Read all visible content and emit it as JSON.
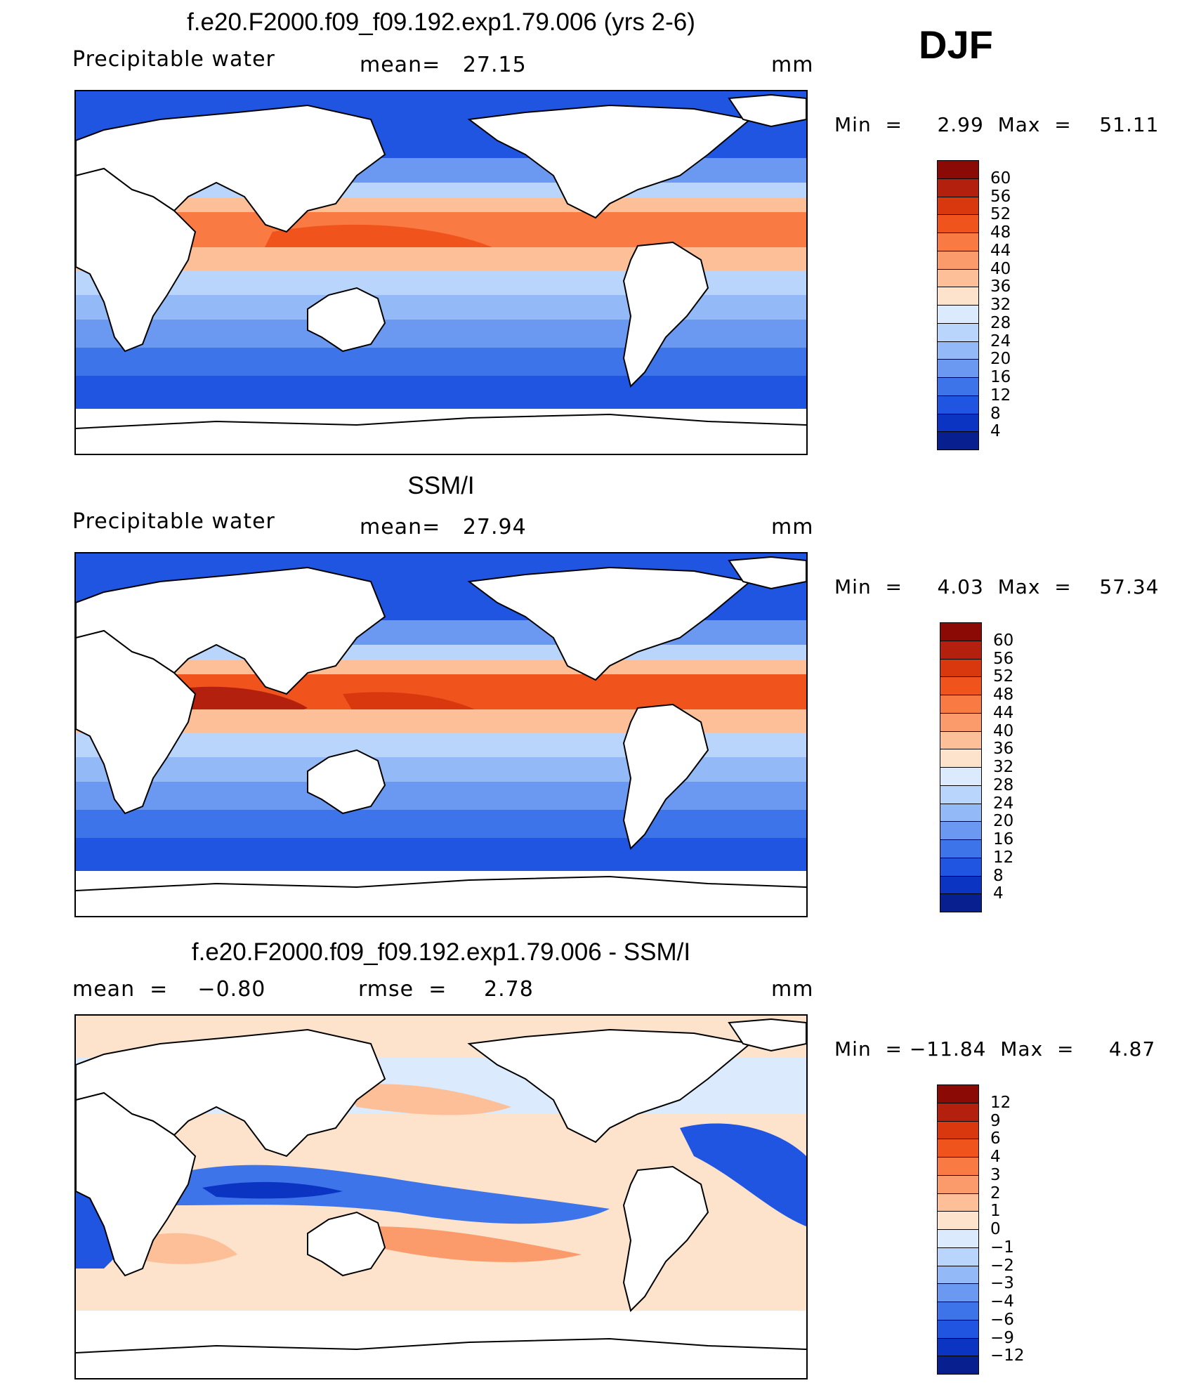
{
  "season_label": "DJF",
  "panels": [
    {
      "title": "f.e20.F2000.f09_f09.192.exp1.79.006 (yrs 2-6)",
      "left_label": "Precipitable water",
      "center_label": "mean=   27.15",
      "right_label": "mm",
      "minmax": "Min  =     2.99  Max  =    51.11",
      "colorbar": {
        "levels": [
          "60",
          "56",
          "52",
          "48",
          "44",
          "40",
          "36",
          "32",
          "28",
          "24",
          "20",
          "16",
          "12",
          "8",
          "4"
        ],
        "colors": [
          "#8b0a05",
          "#b3200e",
          "#d9380f",
          "#f0541c",
          "#f97a43",
          "#fb9a6a",
          "#fdbf97",
          "#fde3cc",
          "#dbeafc",
          "#b9d5fb",
          "#93b9f7",
          "#6b99f1",
          "#3d74ea",
          "#1f55e0",
          "#0c34c2",
          "#071f8f"
        ]
      }
    },
    {
      "title": "SSM/I",
      "left_label": "Precipitable water",
      "center_label": "mean=   27.94",
      "right_label": "mm",
      "minmax": "Min  =     4.03  Max  =    57.34",
      "colorbar": {
        "levels": [
          "60",
          "56",
          "52",
          "48",
          "44",
          "40",
          "36",
          "32",
          "28",
          "24",
          "20",
          "16",
          "12",
          "8",
          "4"
        ],
        "colors": [
          "#8b0a05",
          "#b3200e",
          "#d9380f",
          "#f0541c",
          "#f97a43",
          "#fb9a6a",
          "#fdbf97",
          "#fde3cc",
          "#dbeafc",
          "#b9d5fb",
          "#93b9f7",
          "#6b99f1",
          "#3d74ea",
          "#1f55e0",
          "#0c34c2",
          "#071f8f"
        ]
      }
    },
    {
      "title": "f.e20.F2000.f09_f09.192.exp1.79.006 - SSM/I",
      "left_label": "mean  =    −0.80",
      "center_label": "rmse  =     2.78",
      "right_label": "mm",
      "minmax": "Min  = −11.84  Max  =     4.87",
      "colorbar": {
        "levels": [
          "12",
          "9",
          "6",
          "4",
          "3",
          "2",
          "1",
          "0",
          "−1",
          "−2",
          "−3",
          "−4",
          "−6",
          "−9",
          "−12"
        ],
        "colors": [
          "#8b0a05",
          "#b3200e",
          "#d9380f",
          "#f0541c",
          "#f97a43",
          "#fb9a6a",
          "#fdbf97",
          "#fde3cc",
          "#dbeafc",
          "#b9d5fb",
          "#93b9f7",
          "#6b99f1",
          "#3d74ea",
          "#1f55e0",
          "#0c34c2",
          "#071f8f"
        ]
      }
    }
  ]
}
